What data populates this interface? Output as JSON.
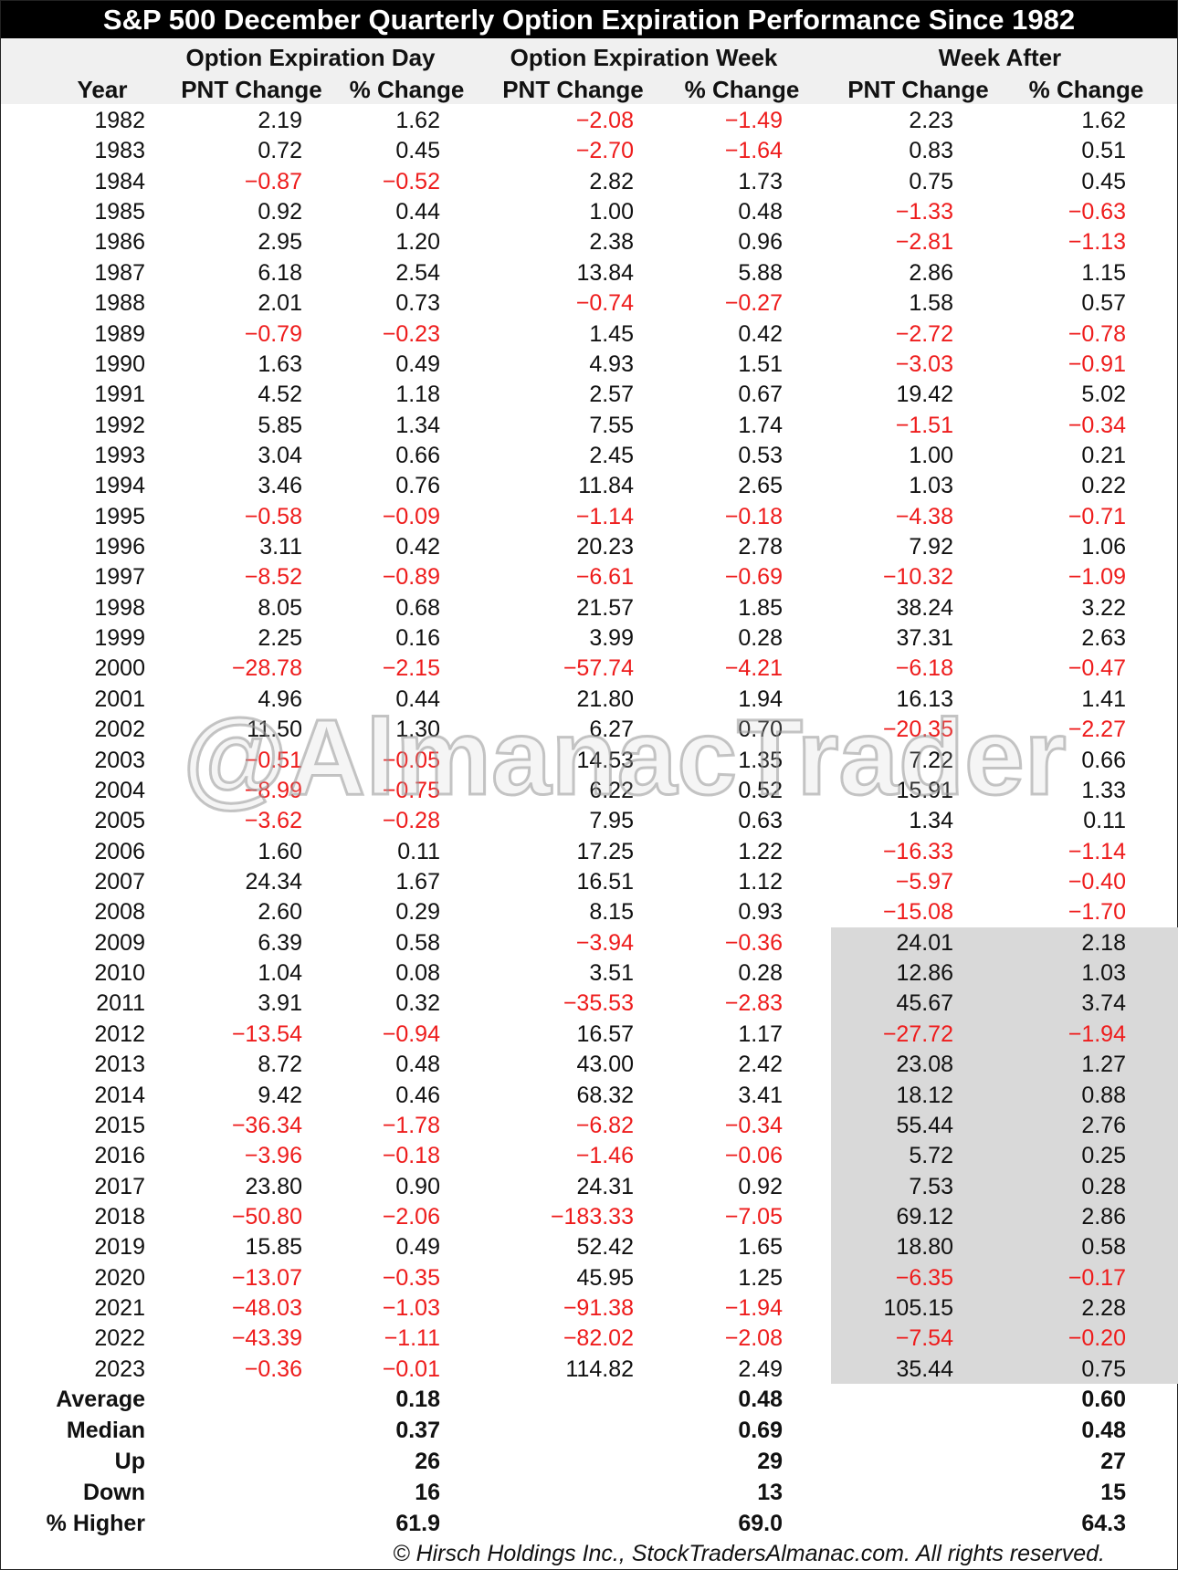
{
  "title": "S&P 500 December Quarterly Option Expiration Performance Since 1982",
  "groups": [
    "Option Expiration Day",
    "Option Expiration Week",
    "Week After"
  ],
  "columns": [
    "Year",
    "PNT Change",
    "% Change",
    "PNT Change",
    "% Change",
    "PNT Change",
    "% Change"
  ],
  "rows": [
    [
      "1982",
      "2.19",
      "1.62",
      "−2.08",
      "−1.49",
      "2.23",
      "1.62"
    ],
    [
      "1983",
      "0.72",
      "0.45",
      "−2.70",
      "−1.64",
      "0.83",
      "0.51"
    ],
    [
      "1984",
      "−0.87",
      "−0.52",
      "2.82",
      "1.73",
      "0.75",
      "0.45"
    ],
    [
      "1985",
      "0.92",
      "0.44",
      "1.00",
      "0.48",
      "−1.33",
      "−0.63"
    ],
    [
      "1986",
      "2.95",
      "1.20",
      "2.38",
      "0.96",
      "−2.81",
      "−1.13"
    ],
    [
      "1987",
      "6.18",
      "2.54",
      "13.84",
      "5.88",
      "2.86",
      "1.15"
    ],
    [
      "1988",
      "2.01",
      "0.73",
      "−0.74",
      "−0.27",
      "1.58",
      "0.57"
    ],
    [
      "1989",
      "−0.79",
      "−0.23",
      "1.45",
      "0.42",
      "−2.72",
      "−0.78"
    ],
    [
      "1990",
      "1.63",
      "0.49",
      "4.93",
      "1.51",
      "−3.03",
      "−0.91"
    ],
    [
      "1991",
      "4.52",
      "1.18",
      "2.57",
      "0.67",
      "19.42",
      "5.02"
    ],
    [
      "1992",
      "5.85",
      "1.34",
      "7.55",
      "1.74",
      "−1.51",
      "−0.34"
    ],
    [
      "1993",
      "3.04",
      "0.66",
      "2.45",
      "0.53",
      "1.00",
      "0.21"
    ],
    [
      "1994",
      "3.46",
      "0.76",
      "11.84",
      "2.65",
      "1.03",
      "0.22"
    ],
    [
      "1995",
      "−0.58",
      "−0.09",
      "−1.14",
      "−0.18",
      "−4.38",
      "−0.71"
    ],
    [
      "1996",
      "3.11",
      "0.42",
      "20.23",
      "2.78",
      "7.92",
      "1.06"
    ],
    [
      "1997",
      "−8.52",
      "−0.89",
      "−6.61",
      "−0.69",
      "−10.32",
      "−1.09"
    ],
    [
      "1998",
      "8.05",
      "0.68",
      "21.57",
      "1.85",
      "38.24",
      "3.22"
    ],
    [
      "1999",
      "2.25",
      "0.16",
      "3.99",
      "0.28",
      "37.31",
      "2.63"
    ],
    [
      "2000",
      "−28.78",
      "−2.15",
      "−57.74",
      "−4.21",
      "−6.18",
      "−0.47"
    ],
    [
      "2001",
      "4.96",
      "0.44",
      "21.80",
      "1.94",
      "16.13",
      "1.41"
    ],
    [
      "2002",
      "11.50",
      "1.30",
      "6.27",
      "0.70",
      "−20.35",
      "−2.27"
    ],
    [
      "2003",
      "−0.51",
      "−0.05",
      "14.53",
      "1.35",
      "7.22",
      "0.66"
    ],
    [
      "2004",
      "−8.99",
      "−0.75",
      "6.22",
      "0.52",
      "15.91",
      "1.33"
    ],
    [
      "2005",
      "−3.62",
      "−0.28",
      "7.95",
      "0.63",
      "1.34",
      "0.11"
    ],
    [
      "2006",
      "1.60",
      "0.11",
      "17.25",
      "1.22",
      "−16.33",
      "−1.14"
    ],
    [
      "2007",
      "24.34",
      "1.67",
      "16.51",
      "1.12",
      "−5.97",
      "−0.40"
    ],
    [
      "2008",
      "2.60",
      "0.29",
      "8.15",
      "0.93",
      "−15.08",
      "−1.70"
    ],
    [
      "2009",
      "6.39",
      "0.58",
      "−3.94",
      "−0.36",
      "24.01",
      "2.18"
    ],
    [
      "2010",
      "1.04",
      "0.08",
      "3.51",
      "0.28",
      "12.86",
      "1.03"
    ],
    [
      "2011",
      "3.91",
      "0.32",
      "−35.53",
      "−2.83",
      "45.67",
      "3.74"
    ],
    [
      "2012",
      "−13.54",
      "−0.94",
      "16.57",
      "1.17",
      "−27.72",
      "−1.94"
    ],
    [
      "2013",
      "8.72",
      "0.48",
      "43.00",
      "2.42",
      "23.08",
      "1.27"
    ],
    [
      "2014",
      "9.42",
      "0.46",
      "68.32",
      "3.41",
      "18.12",
      "0.88"
    ],
    [
      "2015",
      "−36.34",
      "−1.78",
      "−6.82",
      "−0.34",
      "55.44",
      "2.76"
    ],
    [
      "2016",
      "−3.96",
      "−0.18",
      "−1.46",
      "−0.06",
      "5.72",
      "0.25"
    ],
    [
      "2017",
      "23.80",
      "0.90",
      "24.31",
      "0.92",
      "7.53",
      "0.28"
    ],
    [
      "2018",
      "−50.80",
      "−2.06",
      "−183.33",
      "−7.05",
      "69.12",
      "2.86"
    ],
    [
      "2019",
      "15.85",
      "0.49",
      "52.42",
      "1.65",
      "18.80",
      "0.58"
    ],
    [
      "2020",
      "−13.07",
      "−0.35",
      "45.95",
      "1.25",
      "−6.35",
      "−0.17"
    ],
    [
      "2021",
      "−48.03",
      "−1.03",
      "−91.38",
      "−1.94",
      "105.15",
      "2.28"
    ],
    [
      "2022",
      "−43.39",
      "−1.11",
      "−82.02",
      "−2.08",
      "−7.54",
      "−0.20"
    ],
    [
      "2023",
      "−0.36",
      "−0.01",
      "114.82",
      "2.49",
      "35.44",
      "0.75"
    ]
  ],
  "stats": [
    {
      "label": "Average",
      "day": "0.18",
      "week": "0.48",
      "after": "0.60"
    },
    {
      "label": "Median",
      "day": "0.37",
      "week": "0.69",
      "after": "0.48"
    },
    {
      "label": "Up",
      "day": "26",
      "week": "29",
      "after": "27"
    },
    {
      "label": "Down",
      "day": "16",
      "week": "13",
      "after": "15"
    },
    {
      "label": "% Higher",
      "day": "61.9",
      "week": "69.0",
      "after": "64.3"
    }
  ],
  "highlight_years": [
    "2009",
    "2023"
  ],
  "watermark": "@AlmanacTrader",
  "footer": "© Hirsch Holdings Inc., StockTradersAlmanac.com. All rights reserved.",
  "colors": {
    "negative": "#ee1c1c",
    "title_bg": "#000000",
    "header_bg": "#f0f0f0",
    "highlight_bg": "#d9d9d9"
  }
}
